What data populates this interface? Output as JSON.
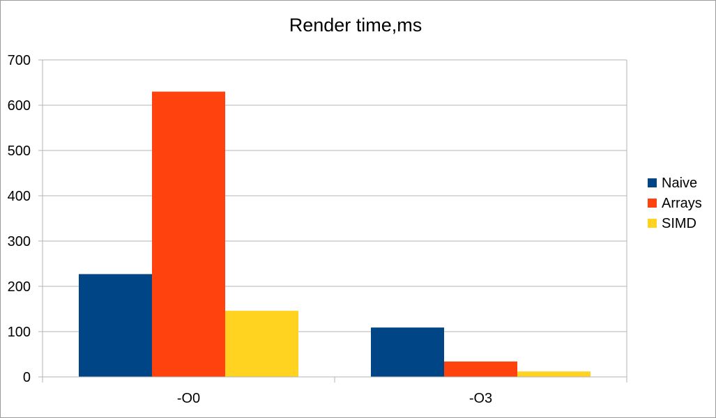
{
  "chart_data": {
    "type": "bar",
    "title": "Render time,ms",
    "xlabel": "",
    "ylabel": "",
    "categories": [
      "-O0",
      "-O3"
    ],
    "series": [
      {
        "name": "Naive",
        "values": [
          227,
          109
        ],
        "color": "#004586"
      },
      {
        "name": "Arrays",
        "values": [
          630,
          34
        ],
        "color": "#ff420e"
      },
      {
        "name": "SIMD",
        "values": [
          146,
          12
        ],
        "color": "#ffd320"
      }
    ],
    "ylim": [
      0,
      700
    ],
    "yticks": [
      "0",
      "100",
      "200",
      "300",
      "400",
      "500",
      "600",
      "700"
    ],
    "grid": true,
    "legend_position": "right"
  }
}
